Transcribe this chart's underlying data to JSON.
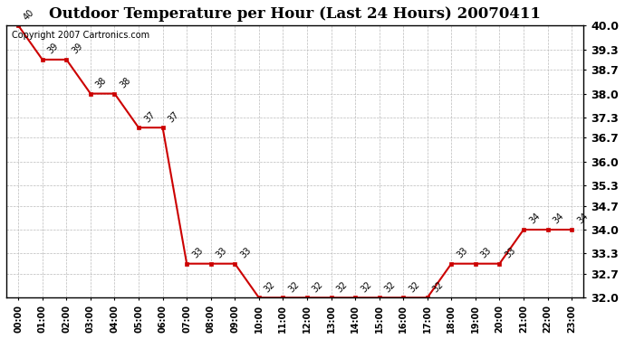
{
  "title": "Outdoor Temperature per Hour (Last 24 Hours) 20070411",
  "copyright_text": "Copyright 2007 Cartronics.com",
  "hours": [
    "00:00",
    "01:00",
    "02:00",
    "03:00",
    "04:00",
    "05:00",
    "06:00",
    "07:00",
    "08:00",
    "09:00",
    "10:00",
    "11:00",
    "12:00",
    "13:00",
    "14:00",
    "15:00",
    "16:00",
    "17:00",
    "18:00",
    "19:00",
    "20:00",
    "21:00",
    "22:00",
    "23:00"
  ],
  "temps": [
    40,
    39,
    39,
    38,
    38,
    37,
    37,
    33,
    33,
    33,
    32,
    32,
    32,
    32,
    32,
    32,
    32,
    32,
    33,
    33,
    33,
    34,
    34,
    34
  ],
  "ylim_min": 32.0,
  "ylim_max": 40.0,
  "yticks": [
    32.0,
    32.7,
    33.3,
    34.0,
    34.7,
    35.3,
    36.0,
    36.7,
    37.3,
    38.0,
    38.7,
    39.3,
    40.0
  ],
  "ytick_labels": [
    "32.0",
    "32.7",
    "33.3",
    "34.0",
    "34.7",
    "35.3",
    "36.0",
    "36.7",
    "37.3",
    "38.0",
    "38.7",
    "39.3",
    "40.0"
  ],
  "line_color": "#cc0000",
  "marker_color": "#cc0000",
  "bg_color": "#ffffff",
  "plot_bg_color": "#ffffff",
  "grid_color": "#bbbbbb",
  "title_fontsize": 12,
  "ylabel_fontsize": 9,
  "xlabel_fontsize": 7,
  "annotation_fontsize": 7,
  "copyright_fontsize": 7
}
